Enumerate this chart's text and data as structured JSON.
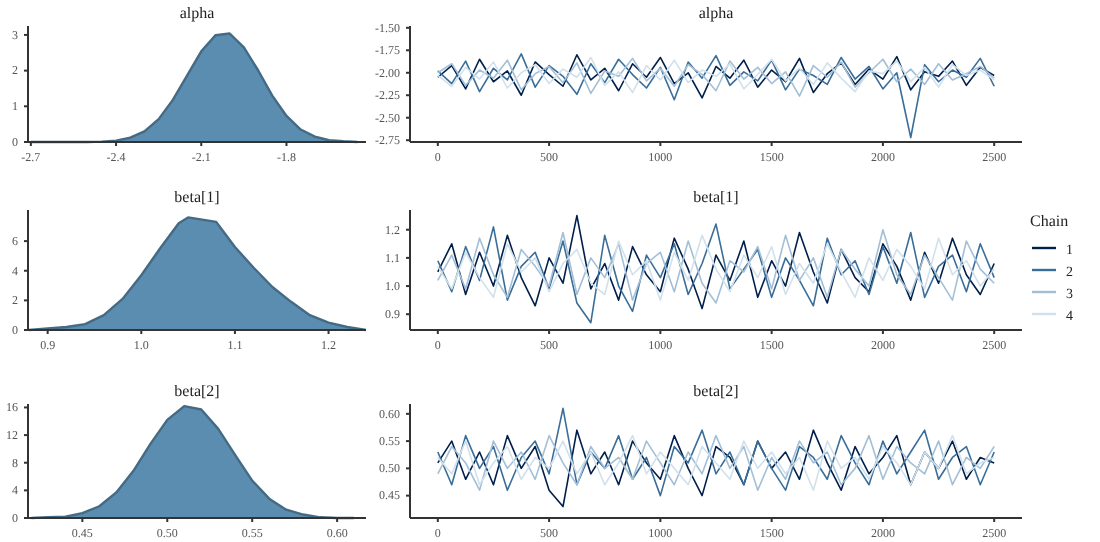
{
  "chart_data": [
    {
      "type": "area",
      "title": "alpha",
      "x": [
        -2.7,
        -2.6,
        -2.5,
        -2.45,
        -2.4,
        -2.35,
        -2.3,
        -2.25,
        -2.2,
        -2.15,
        -2.1,
        -2.05,
        -2.0,
        -1.95,
        -1.9,
        -1.85,
        -1.8,
        -1.75,
        -1.7,
        -1.65,
        -1.6,
        -1.55
      ],
      "xlim": [
        -2.71,
        -1.52
      ],
      "xticks": [
        -2.7,
        -2.4,
        -2.1,
        -1.8
      ],
      "ylim": [
        0,
        3.25
      ],
      "yticks": [
        0,
        1,
        2,
        3
      ],
      "series": [
        {
          "color": "#5b8db0",
          "values": [
            0,
            0,
            0,
            0.01,
            0.04,
            0.12,
            0.3,
            0.64,
            1.18,
            1.86,
            2.54,
            2.99,
            3.04,
            2.65,
            2.01,
            1.3,
            0.73,
            0.35,
            0.15,
            0.05,
            0.02,
            0
          ]
        }
      ]
    },
    {
      "type": "line",
      "title": "alpha",
      "x": [
        0,
        62.5,
        125,
        187.5,
        250,
        312.5,
        375,
        437.5,
        500,
        562.5,
        625,
        687.5,
        750,
        812.5,
        875,
        937.5,
        1000,
        1062.5,
        1125,
        1187.5,
        1250,
        1312.5,
        1375,
        1437.5,
        1500,
        1562.5,
        1625,
        1687.5,
        1750,
        1812.5,
        1875,
        1937.5,
        2000,
        2062.5,
        2125,
        2187.5,
        2250,
        2312.5,
        2375,
        2437.5,
        2500
      ],
      "xlim": [
        -125,
        2625
      ],
      "xticks": [
        0,
        500,
        1000,
        1500,
        2000,
        2500
      ],
      "ylim": [
        -2.77,
        -1.48
      ],
      "yticks": [
        {
          "value": -2.75,
          "label": "-2.75"
        },
        {
          "value": -2.5,
          "label": "-2.50"
        },
        {
          "value": -2.25,
          "label": "-2.25"
        },
        {
          "value": -2.0,
          "label": "-2.00"
        },
        {
          "value": -1.75,
          "label": "-1.75"
        },
        {
          "value": -1.5,
          "label": "-1.50"
        }
      ],
      "series": [
        {
          "name": "1",
          "color": "#011f4b",
          "values": [
            -2.05,
            -1.92,
            -2.18,
            -1.85,
            -2.1,
            -1.98,
            -2.25,
            -1.88,
            -2.02,
            -2.15,
            -1.8,
            -2.08,
            -1.95,
            -2.2,
            -1.9,
            -2.05,
            -1.83,
            -2.12,
            -2.0,
            -2.28,
            -1.93,
            -2.06,
            -1.86,
            -2.16,
            -1.97,
            -2.1,
            -1.84,
            -2.22,
            -2.01,
            -1.89,
            -2.13,
            -1.96,
            -2.07,
            -1.82,
            -2.19,
            -1.99,
            -2.04,
            -1.87,
            -2.14,
            -1.94,
            -2.03
          ]
        },
        {
          "name": "2",
          "color": "#3a6e99",
          "values": [
            -1.98,
            -2.12,
            -1.87,
            -2.21,
            -1.95,
            -2.08,
            -1.79,
            -2.16,
            -1.92,
            -2.04,
            -2.24,
            -1.9,
            -2.11,
            -1.85,
            -2.02,
            -2.17,
            -1.94,
            -2.3,
            -1.88,
            -2.06,
            -1.81,
            -2.14,
            -1.99,
            -2.09,
            -1.86,
            -2.19,
            -1.96,
            -2.03,
            -2.13,
            -1.83,
            -2.07,
            -1.93,
            -2.18,
            -2.0,
            -2.72,
            -1.91,
            -2.1,
            -1.97,
            -2.05,
            -1.84,
            -2.15
          ]
        },
        {
          "name": "3",
          "color": "#a3bfd6",
          "values": [
            -2.0,
            -1.9,
            -2.14,
            -1.97,
            -2.06,
            -1.86,
            -2.19,
            -2.01,
            -1.93,
            -2.11,
            -1.89,
            -2.23,
            -1.98,
            -2.04,
            -1.84,
            -2.09,
            -1.95,
            -2.15,
            -1.91,
            -2.02,
            -2.2,
            -1.87,
            -2.07,
            -1.94,
            -2.12,
            -1.99,
            -2.26,
            -1.92,
            -2.05,
            -1.88,
            -2.16,
            -2.0,
            -1.85,
            -2.1,
            -1.96,
            -2.13,
            -1.9,
            -2.08,
            -2.01,
            -1.93,
            -2.06
          ]
        },
        {
          "name": "4",
          "color": "#d1e1ec",
          "values": [
            -2.03,
            -2.15,
            -1.94,
            -2.07,
            -1.88,
            -2.17,
            -2.0,
            -1.91,
            -2.12,
            -1.96,
            -2.05,
            -1.83,
            -2.14,
            -1.99,
            -2.22,
            -1.92,
            -2.08,
            -1.86,
            -2.11,
            -1.97,
            -2.04,
            -1.9,
            -2.18,
            -2.02,
            -1.85,
            -2.09,
            -1.95,
            -2.13,
            -1.89,
            -2.06,
            -2.21,
            -1.98,
            -2.01,
            -1.87,
            -2.1,
            -1.94,
            -2.16,
            -1.91,
            -2.03,
            -1.97,
            -2.08
          ]
        }
      ]
    },
    {
      "type": "area",
      "title": "beta[1]",
      "x": [
        0.88,
        0.9,
        0.92,
        0.94,
        0.96,
        0.98,
        1.0,
        1.02,
        1.04,
        1.05,
        1.06,
        1.07,
        1.08,
        1.1,
        1.12,
        1.14,
        1.16,
        1.18,
        1.2,
        1.22,
        1.24
      ],
      "xlim": [
        0.879,
        1.24
      ],
      "xticks": [
        0.9,
        {
          "value": 1.0,
          "label": "1.0"
        },
        1.1,
        1.2
      ],
      "ylim": [
        0,
        8.1
      ],
      "yticks": [
        0,
        2,
        4,
        6
      ],
      "series": [
        {
          "color": "#5b8db0",
          "values": [
            0,
            0.1,
            0.2,
            0.4,
            1.0,
            2.1,
            3.7,
            5.5,
            7.2,
            7.6,
            7.5,
            7.4,
            7.3,
            5.6,
            4.2,
            2.9,
            1.9,
            1.0,
            0.5,
            0.2,
            0
          ]
        }
      ]
    },
    {
      "type": "line",
      "title": "beta[1]",
      "legend": "right",
      "legend_title": "Chain",
      "x": [
        0,
        62.5,
        125,
        187.5,
        250,
        312.5,
        375,
        437.5,
        500,
        562.5,
        625,
        687.5,
        750,
        812.5,
        875,
        937.5,
        1000,
        1062.5,
        1125,
        1187.5,
        1250,
        1312.5,
        1375,
        1437.5,
        1500,
        1562.5,
        1625,
        1687.5,
        1750,
        1812.5,
        1875,
        1937.5,
        2000,
        2062.5,
        2125,
        2187.5,
        2250,
        2312.5,
        2375,
        2437.5,
        2500
      ],
      "xlim": [
        -125,
        2625
      ],
      "xticks": [
        0,
        500,
        1000,
        1500,
        2000,
        2500
      ],
      "ylim": [
        0.844,
        1.27
      ],
      "yticks": [
        0.9,
        {
          "value": 1.0,
          "label": "1.0"
        },
        1.1,
        1.2
      ],
      "series": [
        {
          "name": "1",
          "color": "#011f4b",
          "values": [
            1.05,
            1.15,
            0.97,
            1.12,
            1.0,
            1.18,
            1.03,
            0.93,
            1.1,
            1.01,
            1.25,
            0.99,
            1.08,
            0.95,
            1.14,
            1.04,
            0.98,
            1.17,
            1.06,
            0.92,
            1.11,
            1.02,
            1.16,
            0.96,
            1.09,
            1.0,
            1.19,
            1.05,
            0.94,
            1.13,
            1.03,
            0.98,
            1.15,
            1.07,
            0.95,
            1.12,
            1.01,
            1.17,
            1.04,
            0.97,
            1.08
          ]
        },
        {
          "name": "2",
          "color": "#3a6e99",
          "values": [
            1.09,
            0.98,
            1.14,
            1.02,
            1.21,
            0.95,
            1.07,
            1.12,
            0.99,
            1.16,
            0.94,
            0.87,
            1.18,
            1.0,
            0.91,
            1.11,
            1.03,
            1.15,
            0.97,
            1.08,
            1.22,
            0.99,
            1.06,
            1.13,
            0.96,
            1.1,
            1.02,
            0.93,
            1.17,
            1.04,
            1.09,
            0.97,
            1.14,
            1.01,
            1.19,
            0.96,
            1.07,
            1.11,
            0.98,
            1.15,
            1.03
          ]
        },
        {
          "name": "3",
          "color": "#a3bfd6",
          "values": [
            1.02,
            1.11,
            0.99,
            1.17,
            1.04,
            0.96,
            1.13,
            1.07,
            1.0,
            1.19,
            0.97,
            1.1,
            1.03,
            1.15,
            0.95,
            1.08,
            1.12,
            0.98,
            1.16,
            1.01,
            0.94,
            1.09,
            1.05,
            1.14,
            0.99,
            1.18,
            1.02,
            1.1,
            0.96,
            1.13,
            1.06,
            1.0,
            1.2,
            1.04,
            0.97,
            1.11,
            1.03,
            0.95,
            1.16,
            1.06,
            1.01
          ]
        },
        {
          "name": "4",
          "color": "#d1e1ec",
          "values": [
            1.07,
            0.99,
            1.12,
            1.03,
            0.96,
            1.15,
            1.05,
            1.1,
            0.98,
            1.08,
            1.13,
            1.01,
            0.97,
            1.16,
            1.04,
            1.09,
            0.95,
            1.12,
            1.02,
            1.18,
            1.06,
            0.98,
            1.11,
            1.03,
            1.14,
            0.97,
            1.08,
            1.01,
            1.15,
            1.05,
            0.96,
            1.1,
            1.02,
            1.13,
            1.07,
            0.99,
            1.17,
            1.04,
            1.09,
            1.0,
            1.06
          ]
        }
      ]
    },
    {
      "type": "area",
      "title": "beta[2]",
      "x": [
        0.42,
        0.43,
        0.44,
        0.45,
        0.46,
        0.47,
        0.48,
        0.49,
        0.5,
        0.51,
        0.52,
        0.53,
        0.54,
        0.55,
        0.56,
        0.57,
        0.58,
        0.59,
        0.6,
        0.61
      ],
      "xlim": [
        0.418,
        0.617
      ],
      "xticks": [
        0.45,
        {
          "value": 0.5,
          "label": "0.50"
        },
        0.55,
        {
          "value": 0.6,
          "label": "0.60"
        }
      ],
      "ylim": [
        0,
        16.5
      ],
      "yticks": [
        0,
        4,
        8,
        12,
        16
      ],
      "series": [
        {
          "color": "#5b8db0",
          "values": [
            0,
            0.1,
            0.2,
            0.7,
            1.7,
            3.7,
            6.8,
            10.7,
            14.2,
            16.2,
            15.7,
            12.9,
            9.1,
            5.4,
            2.8,
            1.2,
            0.5,
            0.1,
            0,
            0
          ]
        }
      ]
    },
    {
      "type": "line",
      "title": "beta[2]",
      "x": [
        0,
        62.5,
        125,
        187.5,
        250,
        312.5,
        375,
        437.5,
        500,
        562.5,
        625,
        687.5,
        750,
        812.5,
        875,
        937.5,
        1000,
        1062.5,
        1125,
        1187.5,
        1250,
        1312.5,
        1375,
        1437.5,
        1500,
        1562.5,
        1625,
        1687.5,
        1750,
        1812.5,
        1875,
        1937.5,
        2000,
        2062.5,
        2125,
        2187.5,
        2250,
        2312.5,
        2375,
        2437.5,
        2500
      ],
      "xlim": [
        -125,
        2625
      ],
      "xticks": [
        0,
        500,
        1000,
        1500,
        2000,
        2500
      ],
      "ylim": [
        0.409,
        0.618
      ],
      "yticks": [
        0.45,
        {
          "value": 0.5,
          "label": "0.50"
        },
        0.55,
        {
          "value": 0.6,
          "label": "0.60"
        }
      ],
      "series": [
        {
          "name": "1",
          "color": "#011f4b",
          "values": [
            0.51,
            0.55,
            0.48,
            0.53,
            0.47,
            0.56,
            0.5,
            0.54,
            0.46,
            0.43,
            0.57,
            0.49,
            0.53,
            0.47,
            0.55,
            0.51,
            0.48,
            0.56,
            0.5,
            0.45,
            0.54,
            0.52,
            0.47,
            0.55,
            0.5,
            0.53,
            0.48,
            0.57,
            0.51,
            0.46,
            0.54,
            0.49,
            0.52,
            0.56,
            0.47,
            0.53,
            0.5,
            0.55,
            0.48,
            0.52,
            0.51
          ]
        },
        {
          "name": "2",
          "color": "#3a6e99",
          "values": [
            0.53,
            0.47,
            0.56,
            0.5,
            0.54,
            0.46,
            0.52,
            0.55,
            0.49,
            0.61,
            0.47,
            0.53,
            0.5,
            0.56,
            0.48,
            0.52,
            0.45,
            0.54,
            0.51,
            0.57,
            0.49,
            0.53,
            0.47,
            0.55,
            0.5,
            0.46,
            0.54,
            0.52,
            0.48,
            0.56,
            0.51,
            0.47,
            0.55,
            0.49,
            0.53,
            0.57,
            0.48,
            0.52,
            0.54,
            0.47,
            0.53
          ]
        },
        {
          "name": "3",
          "color": "#a3bfd6",
          "values": [
            0.49,
            0.54,
            0.51,
            0.46,
            0.55,
            0.5,
            0.53,
            0.48,
            0.56,
            0.51,
            0.47,
            0.54,
            0.5,
            0.52,
            0.48,
            0.55,
            0.51,
            0.47,
            0.53,
            0.49,
            0.56,
            0.5,
            0.54,
            0.46,
            0.52,
            0.48,
            0.55,
            0.51,
            0.53,
            0.47,
            0.5,
            0.56,
            0.48,
            0.54,
            0.51,
            0.49,
            0.55,
            0.47,
            0.52,
            0.5,
            0.54
          ]
        },
        {
          "name": "4",
          "color": "#d1e1ec",
          "values": [
            0.52,
            0.49,
            0.55,
            0.47,
            0.51,
            0.54,
            0.48,
            0.52,
            0.5,
            0.55,
            0.49,
            0.53,
            0.47,
            0.51,
            0.56,
            0.49,
            0.53,
            0.5,
            0.47,
            0.54,
            0.51,
            0.48,
            0.55,
            0.5,
            0.53,
            0.49,
            0.52,
            0.46,
            0.55,
            0.5,
            0.52,
            0.48,
            0.54,
            0.51,
            0.47,
            0.53,
            0.5,
            0.56,
            0.49,
            0.51,
            0.52
          ]
        }
      ]
    }
  ]
}
